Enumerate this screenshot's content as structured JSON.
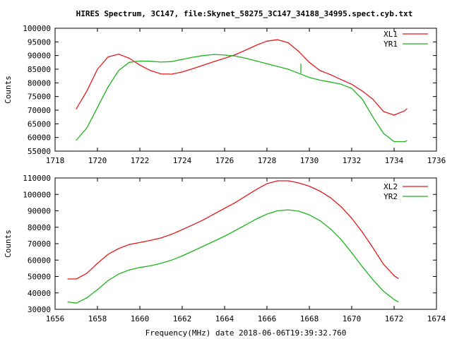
{
  "title": "HIRES Spectrum, 3C147, file:Skynet_58275_3C147_34188_34995.spect.cyb.txt",
  "chart_data": [
    {
      "type": "line",
      "xlabel": "",
      "ylabel": "Counts",
      "xlim": [
        1718,
        1736
      ],
      "ylim": [
        55000,
        100000
      ],
      "xticks": [
        "1718",
        "1720",
        "1722",
        "1724",
        "1726",
        "1728",
        "1730",
        "1732",
        "1734",
        "1736"
      ],
      "yticks": [
        "55000",
        "60000",
        "65000",
        "70000",
        "75000",
        "80000",
        "85000",
        "90000",
        "95000",
        "100000"
      ],
      "legend_position": "top-right",
      "series": [
        {
          "name": "XL1",
          "color": "#e31a1c",
          "x": [
            1719.0,
            1719.5,
            1720.0,
            1720.5,
            1721.0,
            1721.5,
            1722.0,
            1722.5,
            1723.0,
            1723.5,
            1724.0,
            1724.5,
            1725.0,
            1725.5,
            1726.0,
            1726.5,
            1727.0,
            1727.5,
            1728.0,
            1728.5,
            1729.0,
            1729.5,
            1730.0,
            1730.5,
            1731.0,
            1731.5,
            1732.0,
            1732.5,
            1733.0,
            1733.5,
            1734.0,
            1734.5,
            1734.6
          ],
          "y": [
            70500,
            77000,
            85000,
            89500,
            90500,
            89000,
            86500,
            84500,
            83300,
            83200,
            84000,
            85200,
            86500,
            87800,
            89000,
            90300,
            92000,
            93800,
            95300,
            95800,
            94700,
            91500,
            87500,
            84500,
            83000,
            81200,
            79500,
            77000,
            74000,
            69500,
            68200,
            69800,
            70500
          ]
        },
        {
          "name": "YR1",
          "color": "#1fb31f",
          "x": [
            1719.0,
            1719.5,
            1720.0,
            1720.5,
            1721.0,
            1721.5,
            1722.0,
            1722.5,
            1723.0,
            1723.5,
            1724.0,
            1724.5,
            1725.0,
            1725.5,
            1726.0,
            1726.5,
            1727.0,
            1727.5,
            1728.0,
            1728.5,
            1729.0,
            1729.5,
            1730.0,
            1730.5,
            1731.0,
            1731.5,
            1732.0,
            1732.5,
            1733.0,
            1733.5,
            1734.0,
            1734.5,
            1734.6
          ],
          "y": [
            59000,
            63500,
            71000,
            78500,
            84500,
            87500,
            88000,
            87900,
            87600,
            87800,
            88600,
            89400,
            90000,
            90400,
            90200,
            89800,
            89000,
            88000,
            87000,
            86000,
            85000,
            83500,
            82000,
            81000,
            80300,
            79500,
            78000,
            74000,
            67500,
            61500,
            58500,
            58500,
            58800
          ]
        }
      ],
      "annotations": [
        {
          "type": "spike",
          "x": 1729.6,
          "y_from": 83500,
          "y_to": 87000,
          "series": "YR1"
        }
      ]
    },
    {
      "type": "line",
      "xlabel": "Frequency(MHz) date 2018-06-06T19:39:32.760",
      "ylabel": "Counts",
      "xlim": [
        1656,
        1674
      ],
      "ylim": [
        30000,
        110000
      ],
      "xticks": [
        "1656",
        "1658",
        "1660",
        "1662",
        "1664",
        "1666",
        "1668",
        "1670",
        "1672",
        "1674"
      ],
      "yticks": [
        "30000",
        "40000",
        "50000",
        "60000",
        "70000",
        "80000",
        "90000",
        "100000",
        "110000"
      ],
      "legend_position": "top-right",
      "series": [
        {
          "name": "XL2",
          "color": "#e31a1c",
          "x": [
            1656.6,
            1657.0,
            1657.5,
            1658.0,
            1658.5,
            1659.0,
            1659.5,
            1660.0,
            1660.5,
            1661.0,
            1661.5,
            1662.0,
            1662.5,
            1663.0,
            1663.5,
            1664.0,
            1664.5,
            1665.0,
            1665.5,
            1666.0,
            1666.5,
            1667.0,
            1667.5,
            1668.0,
            1668.5,
            1669.0,
            1669.5,
            1670.0,
            1670.5,
            1671.0,
            1671.5,
            1672.0,
            1672.2
          ],
          "y": [
            48500,
            48500,
            52000,
            58000,
            63500,
            67000,
            69500,
            70700,
            72000,
            73500,
            75700,
            78500,
            81500,
            84500,
            88000,
            91500,
            95000,
            99000,
            103000,
            106500,
            108300,
            108300,
            107000,
            105000,
            102000,
            98000,
            92500,
            85500,
            77000,
            67500,
            57500,
            50500,
            48800
          ]
        },
        {
          "name": "YR2",
          "color": "#1fb31f",
          "x": [
            1656.6,
            1657.0,
            1657.5,
            1658.0,
            1658.5,
            1659.0,
            1659.5,
            1660.0,
            1660.5,
            1661.0,
            1661.5,
            1662.0,
            1662.5,
            1663.0,
            1663.5,
            1664.0,
            1664.5,
            1665.0,
            1665.5,
            1666.0,
            1666.5,
            1667.0,
            1667.5,
            1668.0,
            1668.5,
            1669.0,
            1669.5,
            1670.0,
            1670.5,
            1671.0,
            1671.5,
            1672.0,
            1672.2
          ],
          "y": [
            34500,
            33800,
            37000,
            42000,
            47500,
            51500,
            54000,
            55500,
            56500,
            58000,
            60000,
            62500,
            65500,
            68500,
            71500,
            74500,
            78000,
            81500,
            85000,
            88000,
            90000,
            90600,
            89800,
            87500,
            84000,
            79000,
            72500,
            64500,
            56000,
            48000,
            41000,
            36000,
            34500
          ]
        }
      ]
    }
  ]
}
